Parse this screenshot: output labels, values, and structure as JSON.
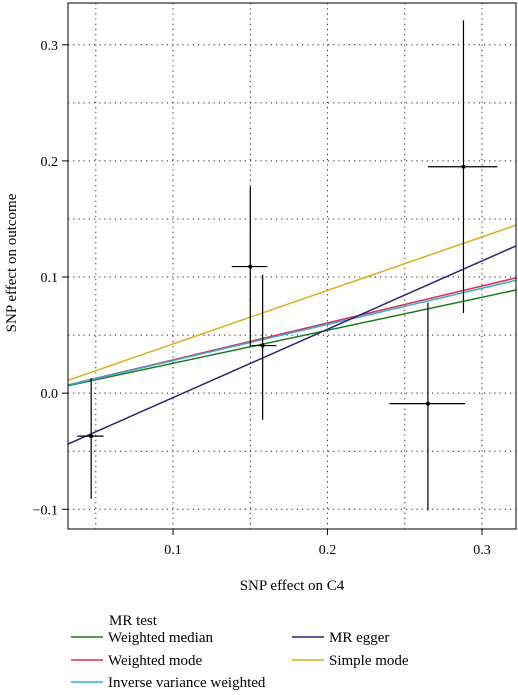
{
  "chart_data": {
    "type": "scatter",
    "xlabel": "SNP effect on C4",
    "ylabel": "SNP effect on outcome",
    "xlim": [
      0.032,
      0.322
    ],
    "ylim": [
      -0.117,
      0.336
    ],
    "x_ticks": [
      0.1,
      0.2,
      0.3
    ],
    "x_tick_labels": [
      "0.1",
      "0.2",
      "0.3"
    ],
    "y_ticks": [
      -0.1,
      0.0,
      0.1,
      0.2,
      0.3
    ],
    "y_tick_labels": [
      "−0.1",
      "0.0",
      "0.1",
      "0.2",
      "0.3"
    ],
    "grid": true,
    "grid_style": "dotted",
    "points": [
      {
        "x": 0.047,
        "y": -0.037,
        "x_lo": 0.038,
        "x_hi": 0.055,
        "y_lo": -0.091,
        "y_hi": 0.013
      },
      {
        "x": 0.15,
        "y": 0.109,
        "x_lo": 0.138,
        "x_hi": 0.161,
        "y_lo": 0.04,
        "y_hi": 0.178
      },
      {
        "x": 0.158,
        "y": 0.041,
        "x_lo": 0.151,
        "x_hi": 0.167,
        "y_lo": -0.023,
        "y_hi": 0.102
      },
      {
        "x": 0.265,
        "y": -0.009,
        "x_lo": 0.24,
        "x_hi": 0.289,
        "y_lo": -0.101,
        "y_hi": 0.078
      },
      {
        "x": 0.288,
        "y": 0.195,
        "x_lo": 0.265,
        "x_hi": 0.31,
        "y_lo": 0.069,
        "y_hi": 0.321
      }
    ],
    "series": [
      {
        "name": "Weighted median",
        "color": "#1e7a1e",
        "intercept": -0.0027,
        "slope": 0.2843
      },
      {
        "name": "Weighted mode",
        "color": "#d9334a",
        "intercept": -0.0031,
        "slope": 0.3179
      },
      {
        "name": "Inverse variance weighted",
        "color": "#3aaad6",
        "intercept": -0.0031,
        "slope": 0.3114
      },
      {
        "name": "MR egger",
        "color": "#26267a",
        "intercept": -0.0627,
        "slope": 0.5886
      },
      {
        "name": "Simple mode",
        "color": "#d6b21a",
        "intercept": -0.0037,
        "slope": 0.4609
      }
    ],
    "legend": {
      "title": "MR test",
      "placement": "bottom",
      "columns": [
        [
          "Weighted median",
          "Weighted mode",
          "Inverse variance weighted"
        ],
        [
          "MR egger",
          "Simple mode"
        ]
      ]
    }
  }
}
